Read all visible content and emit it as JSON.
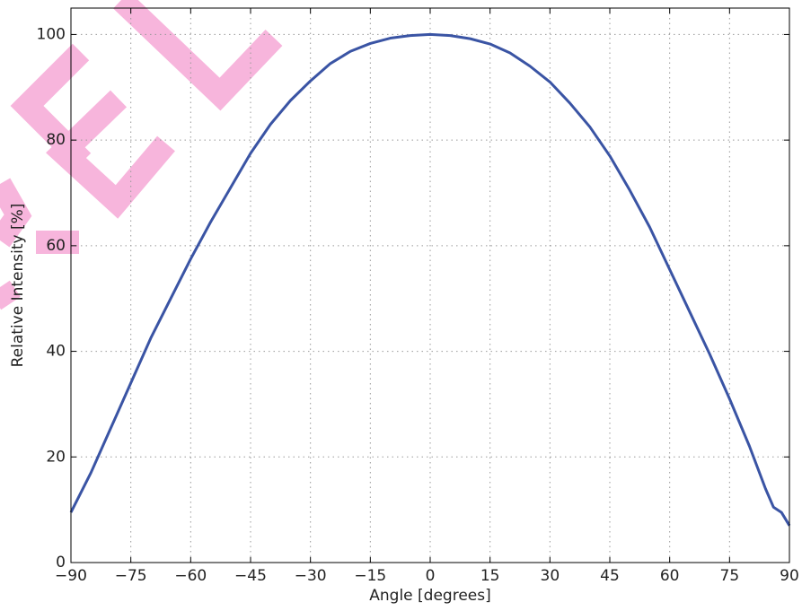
{
  "chart_data": {
    "type": "line",
    "x_label": "Angle [degrees]",
    "y_label": "Relative Intensity [%]",
    "x": [
      -90,
      -85,
      -80,
      -75,
      -70,
      -65,
      -60,
      -55,
      -50,
      -45,
      -40,
      -35,
      -30,
      -25,
      -20,
      -15,
      -10,
      -5,
      0,
      5,
      10,
      15,
      20,
      25,
      30,
      35,
      40,
      45,
      50,
      55,
      60,
      65,
      70,
      75,
      80,
      84,
      86,
      88,
      90
    ],
    "values": [
      9.5,
      17,
      25.5,
      34,
      42.5,
      50,
      57.5,
      64.5,
      71,
      77.5,
      83,
      87.5,
      91.2,
      94.5,
      96.8,
      98.3,
      99.3,
      99.8,
      100,
      99.8,
      99.2,
      98.2,
      96.5,
      94,
      91,
      87,
      82.5,
      77,
      70.5,
      63.5,
      55.5,
      47.5,
      39.5,
      31,
      22,
      14,
      10.5,
      9.5,
      7
    ],
    "color": "#3a54a4",
    "xlim": [
      -90,
      90
    ],
    "xticks": [
      {
        "value": -90,
        "label": "−90"
      },
      {
        "value": -75,
        "label": "−75"
      },
      {
        "value": -60,
        "label": "−60"
      },
      {
        "value": -45,
        "label": "−45"
      },
      {
        "value": -30,
        "label": "−30"
      },
      {
        "value": -15,
        "label": "−15"
      },
      0,
      15,
      30,
      45,
      60,
      75,
      90
    ],
    "ylim": [
      0,
      105
    ],
    "yticks": [
      0,
      20,
      40,
      60,
      80,
      100
    ],
    "grid": true
  }
}
